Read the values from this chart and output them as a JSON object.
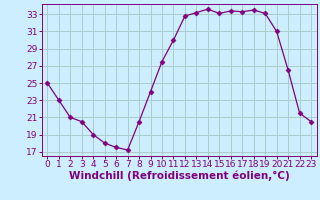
{
  "x": [
    0,
    1,
    2,
    3,
    4,
    5,
    6,
    7,
    8,
    9,
    10,
    11,
    12,
    13,
    14,
    15,
    16,
    17,
    18,
    19,
    20,
    21,
    22,
    23
  ],
  "y": [
    25,
    23,
    21,
    20.5,
    19,
    18,
    17.5,
    17.2,
    20.5,
    24,
    27.5,
    30,
    32.8,
    33.2,
    33.6,
    33.1,
    33.4,
    33.3,
    33.5,
    33.1,
    31,
    26.5,
    21.5,
    20.5
  ],
  "line_color": "#800080",
  "marker": "D",
  "marker_size": 2.5,
  "bg_color": "#cceeff",
  "grid_color": "#aacccc",
  "xlabel": "Windchill (Refroidissement éolien,°C)",
  "xlabel_color": "#800080",
  "ylim": [
    16.5,
    34.2
  ],
  "xlim": [
    -0.5,
    23.5
  ],
  "yticks": [
    17,
    19,
    21,
    23,
    25,
    27,
    29,
    31,
    33
  ],
  "xticks": [
    0,
    1,
    2,
    3,
    4,
    5,
    6,
    7,
    8,
    9,
    10,
    11,
    12,
    13,
    14,
    15,
    16,
    17,
    18,
    19,
    20,
    21,
    22,
    23
  ],
  "tick_color": "#800080",
  "tick_fontsize": 6.5,
  "xlabel_fontsize": 7.5
}
